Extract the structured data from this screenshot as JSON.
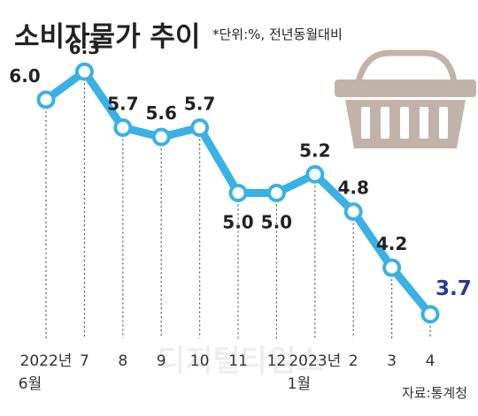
{
  "title": "소비자물가 추이",
  "subtitle": "*단위:%, 전년동월대비",
  "source": "자료:통계청",
  "watermark": "디지털타임스",
  "colors": {
    "line": "#3ab1e4",
    "marker_fill": "#ffffff",
    "grid": "#555555",
    "basket": "#c2b3a9",
    "last_value": "#2b3990",
    "text": "#222222"
  },
  "icons": {
    "basket": "shopping-basket-icon"
  },
  "chart_data": {
    "type": "line",
    "title": "소비자물가 추이",
    "subtitle": "*단위:%, 전년동월대비",
    "categories": [
      "2022년 6월",
      "7",
      "8",
      "9",
      "10",
      "11",
      "12",
      "2023년 1월",
      "2",
      "3",
      "4"
    ],
    "tick_labels": [
      [
        "2022년",
        "6월"
      ],
      [
        "7"
      ],
      [
        "8"
      ],
      [
        "9"
      ],
      [
        "10"
      ],
      [
        "11"
      ],
      [
        "12"
      ],
      [
        "2023년",
        "1월"
      ],
      [
        "2"
      ],
      [
        "3"
      ],
      [
        "4"
      ]
    ],
    "values": [
      6.0,
      6.3,
      5.7,
      5.6,
      5.7,
      5.0,
      5.0,
      5.2,
      4.8,
      4.2,
      3.7
    ],
    "value_labels": [
      "6.0",
      "6.3",
      "5.7",
      "5.6",
      "5.7",
      "5.0",
      "5.0",
      "5.2",
      "4.8",
      "4.2",
      "3.7"
    ],
    "ylim": [
      3.5,
      6.5
    ],
    "grid": "vertical-dotted",
    "source": "자료:통계청"
  }
}
